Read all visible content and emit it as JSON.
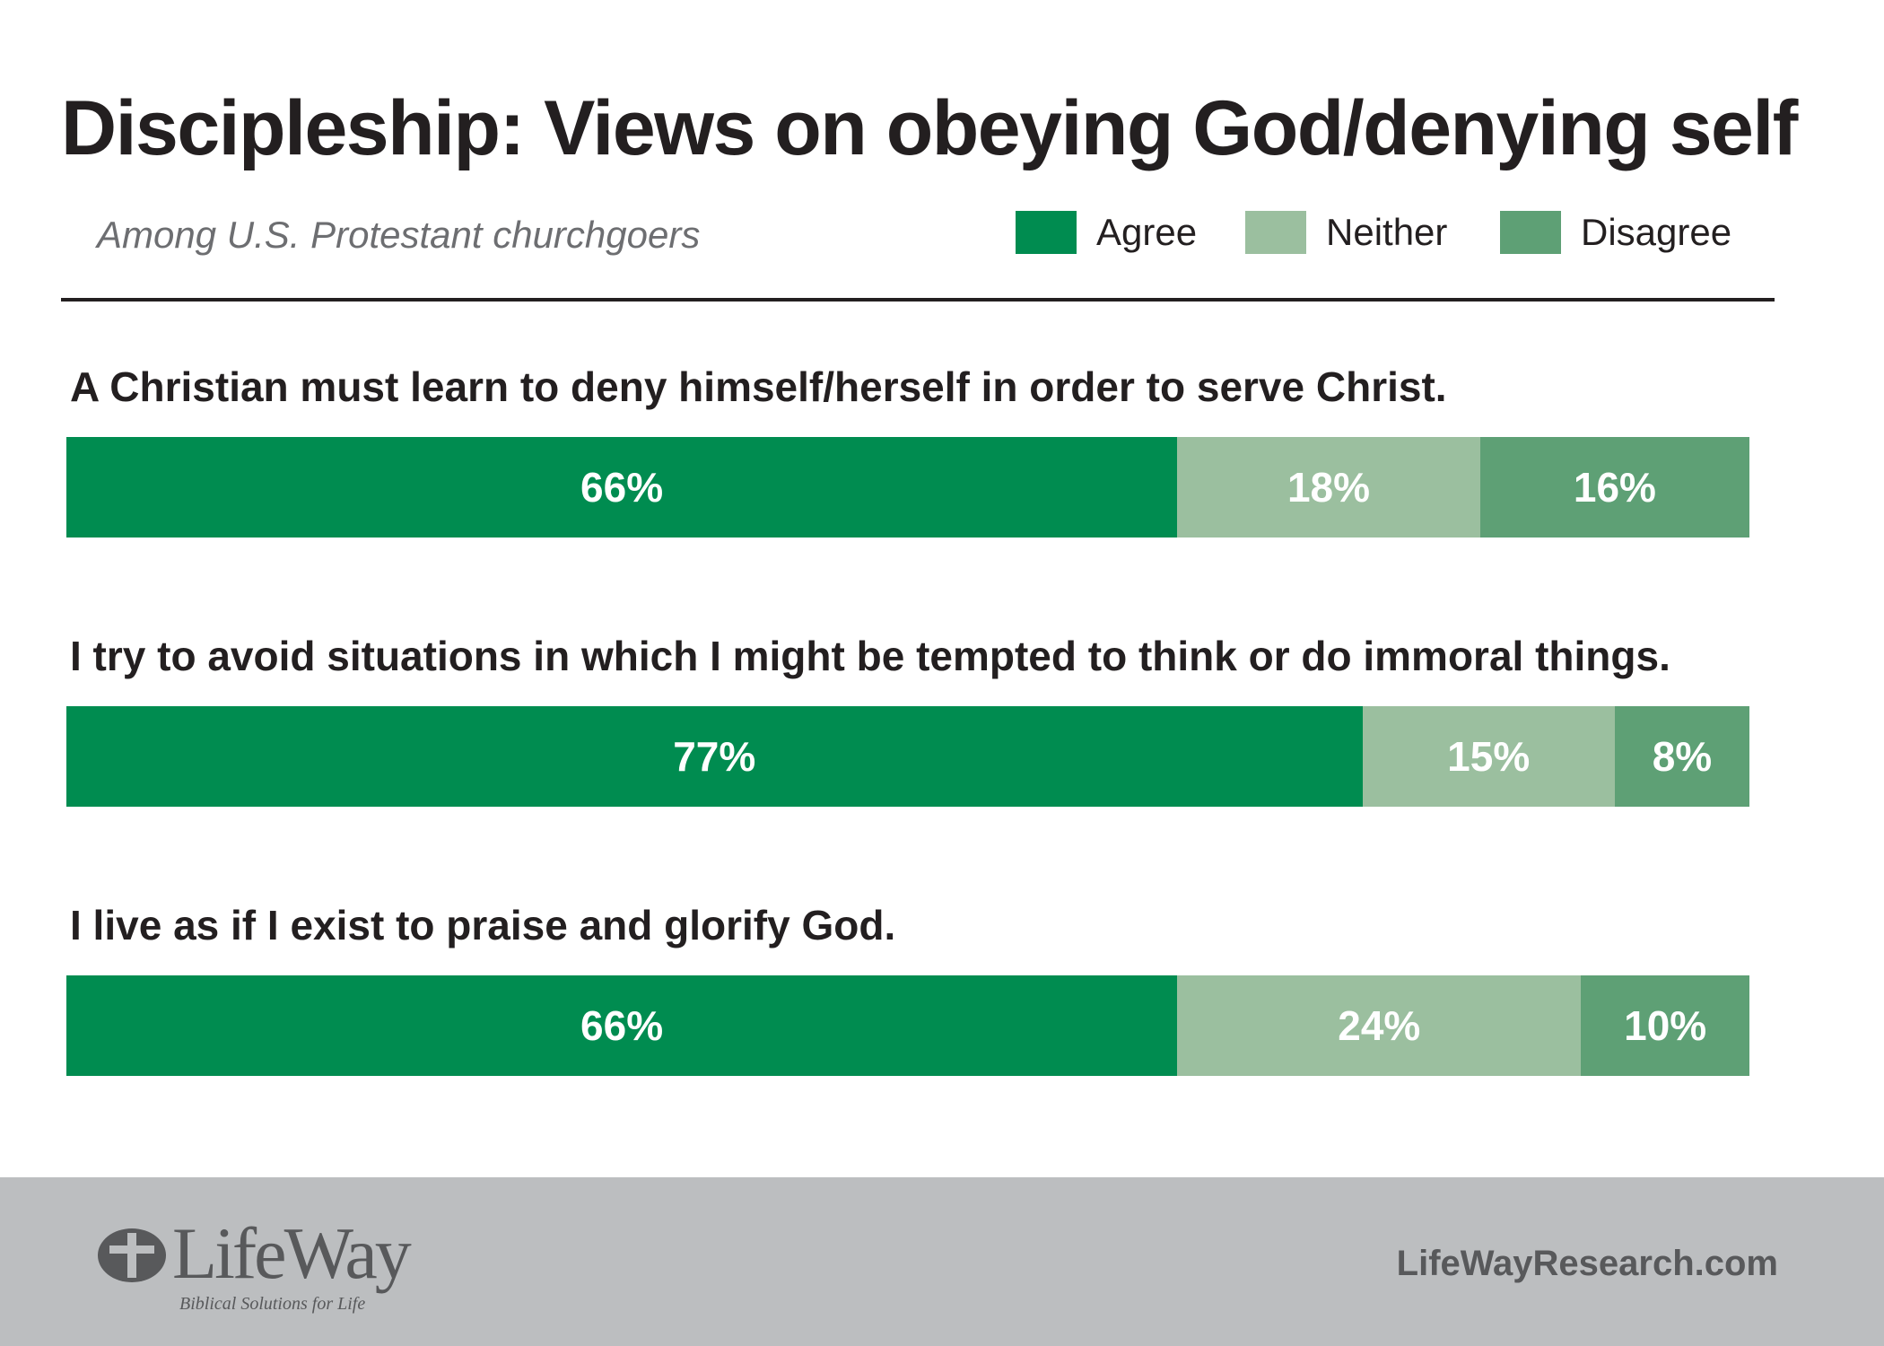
{
  "chart_data": {
    "type": "bar",
    "orientation": "horizontal",
    "stacked": true,
    "title": "Discipleship: Views on obeying God/denying self",
    "subtitle": "Among U.S. Protestant churchgoers",
    "legend_position": "top-right",
    "categories": [
      "A Christian must learn to deny himself/herself in order to serve Christ.",
      "I try to avoid situations in which I might be tempted to think or do immoral things.",
      "I live as if I exist to praise and glorify God."
    ],
    "series": [
      {
        "name": "Agree",
        "color": "#008c50",
        "values": [
          66,
          77,
          66
        ],
        "labels": [
          "66%",
          "77%",
          "66%"
        ]
      },
      {
        "name": "Neither",
        "color": "#9bbf9f",
        "values": [
          18,
          15,
          24
        ],
        "labels": [
          "18%",
          "15%",
          "24%"
        ]
      },
      {
        "name": "Disagree",
        "color": "#5ea075",
        "values": [
          16,
          8,
          10
        ],
        "labels": [
          "16%",
          "8%",
          "10%"
        ]
      }
    ],
    "xlim": [
      0,
      100
    ],
    "grid": false
  },
  "footer": {
    "logo_text": "LifeWay",
    "logo_tagline": "Biblical Solutions for Life",
    "logo_icon": "lifeway-cross-icon",
    "website": "LifeWayResearch.com",
    "background_color": "#bcbec0"
  }
}
